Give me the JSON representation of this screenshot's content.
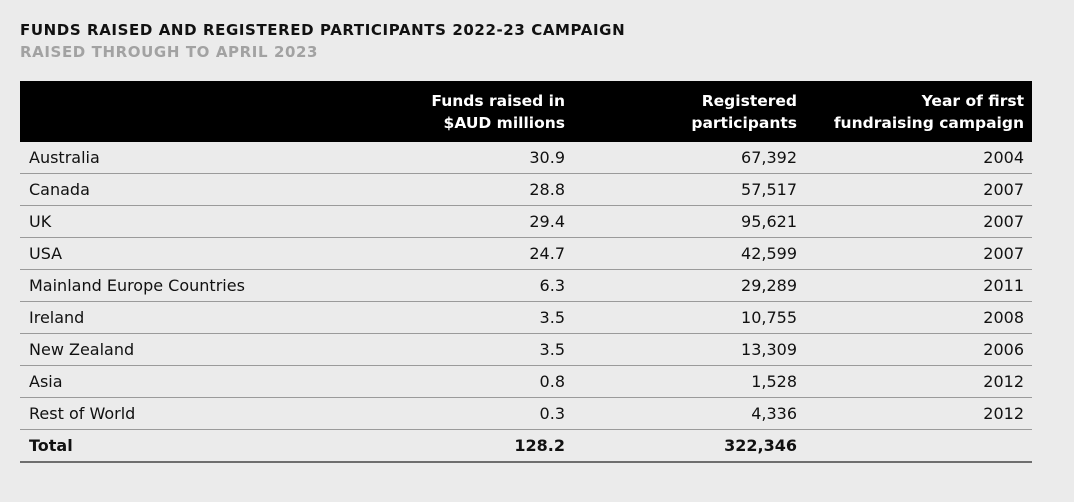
{
  "title": "FUNDS RAISED AND REGISTERED PARTICIPANTS 2022-23 CAMPAIGN",
  "subtitle": "RAISED THROUGH TO APRIL 2023",
  "table": {
    "headers": {
      "region": "",
      "funds_line1": "Funds raised in",
      "funds_line2": "$AUD millions",
      "participants_line1": "Registered",
      "participants_line2": "participants",
      "year_line1": "Year of first",
      "year_line2": "fundraising campaign"
    },
    "rows": [
      {
        "region": "Australia",
        "funds": "30.9",
        "participants": "67,392",
        "year": "2004"
      },
      {
        "region": "Canada",
        "funds": "28.8",
        "participants": "57,517",
        "year": "2007"
      },
      {
        "region": "UK",
        "funds": "29.4",
        "participants": "95,621",
        "year": "2007"
      },
      {
        "region": "USA",
        "funds": "24.7",
        "participants": "42,599",
        "year": "2007"
      },
      {
        "region": "Mainland Europe Countries",
        "funds": "6.3",
        "participants": "29,289",
        "year": "2011"
      },
      {
        "region": "Ireland",
        "funds": "3.5",
        "participants": "10,755",
        "year": "2008"
      },
      {
        "region": "New Zealand",
        "funds": "3.5",
        "participants": "13,309",
        "year": "2006"
      },
      {
        "region": "Asia",
        "funds": "0.8",
        "participants": "1,528",
        "year": "2012"
      },
      {
        "region": "Rest of World",
        "funds": "0.3",
        "participants": "4,336",
        "year": "2012"
      }
    ],
    "total": {
      "region": "Total",
      "funds": "128.2",
      "participants": "322,346",
      "year": ""
    }
  }
}
